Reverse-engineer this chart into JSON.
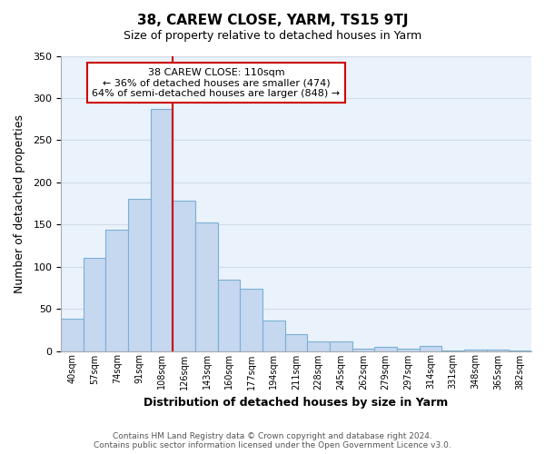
{
  "title": "38, CAREW CLOSE, YARM, TS15 9TJ",
  "subtitle": "Size of property relative to detached houses in Yarm",
  "xlabel": "Distribution of detached houses by size in Yarm",
  "ylabel": "Number of detached properties",
  "bin_labels": [
    "40sqm",
    "57sqm",
    "74sqm",
    "91sqm",
    "108sqm",
    "126sqm",
    "143sqm",
    "160sqm",
    "177sqm",
    "194sqm",
    "211sqm",
    "228sqm",
    "245sqm",
    "262sqm",
    "279sqm",
    "297sqm",
    "314sqm",
    "331sqm",
    "348sqm",
    "365sqm",
    "382sqm"
  ],
  "bar_heights": [
    38,
    110,
    144,
    180,
    287,
    178,
    152,
    85,
    74,
    36,
    20,
    11,
    11,
    3,
    5,
    3,
    6,
    1,
    2,
    2,
    1
  ],
  "bar_color": "#c5d8f0",
  "bar_edge_color": "#7bafd4",
  "vline_x_index": 4,
  "vline_color": "#cc0000",
  "ylim": [
    0,
    350
  ],
  "yticks": [
    0,
    50,
    100,
    150,
    200,
    250,
    300,
    350
  ],
  "annotation_title": "38 CAREW CLOSE: 110sqm",
  "annotation_line1": "← 36% of detached houses are smaller (474)",
  "annotation_line2": "64% of semi-detached houses are larger (848) →",
  "annotation_box_color": "#ffffff",
  "annotation_box_edge": "#cc0000",
  "footer_line1": "Contains HM Land Registry data © Crown copyright and database right 2024.",
  "footer_line2": "Contains public sector information licensed under the Open Government Licence v3.0.",
  "grid_color": "#d0dce8",
  "background_color": "#eaf2fb"
}
